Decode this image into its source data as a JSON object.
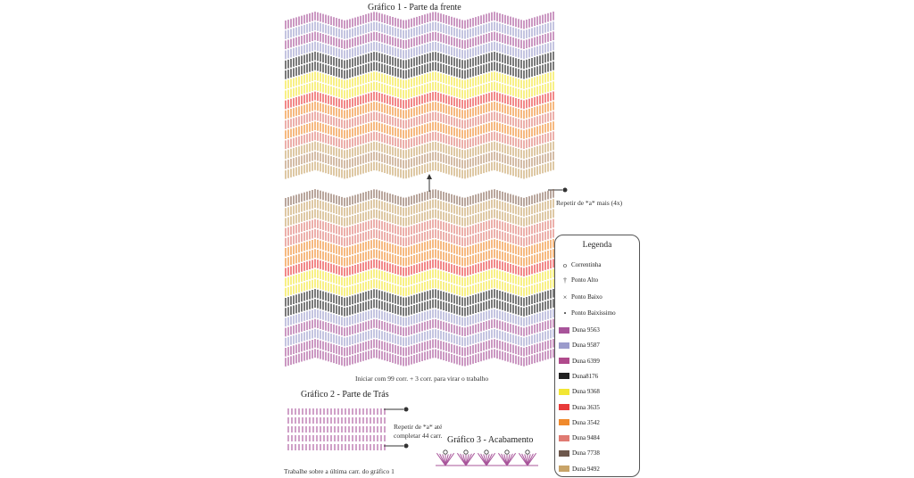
{
  "chart1": {
    "title": "Gráfico 1 - Parte da frente",
    "repeat_note": "Repetir de *a* mais (4x)",
    "start_note": "Iniciar com 99 corr. + 3 corr. para virar o trabalho",
    "upper_rows": [
      "#a8549a",
      "#9c9ccc",
      "#a8549a",
      "#9c9ccc",
      "#222222",
      "#222222",
      "#f2e634",
      "#f2e634",
      "#e83a3a",
      "#f08a2c",
      "#e07a72",
      "#f08a2c",
      "#e07a72",
      "#c8a468",
      "#b8906a",
      "#c8a468"
    ],
    "lower_rows": [
      "#8a6a5a",
      "#c8a468",
      "#c8a468",
      "#e07a72",
      "#e07a72",
      "#f08a2c",
      "#f08a2c",
      "#e83a3a",
      "#f2e634",
      "#f2e634",
      "#222222",
      "#222222",
      "#9c9ccc",
      "#a8549a",
      "#9c9ccc",
      "#a8549a",
      "#a8549a"
    ]
  },
  "chart2": {
    "title": "Gráfico 2 - Parte de Trás",
    "repeat_note_1": "Repetir de *a* até",
    "repeat_note_2": "completar 44 carr.",
    "bottom_note": "Trabalhe sobre a última carr. do gráfico 1",
    "rows": 5,
    "color": "#a8549a"
  },
  "chart3": {
    "title": "Gráfico 3 - Acabamento",
    "motifs": 5,
    "color": "#a8549a"
  },
  "legend": {
    "title": "Legenda",
    "symbols": [
      {
        "glyph": "o",
        "label": "Correntinha",
        "icon": "chain-stitch-icon"
      },
      {
        "glyph": "†",
        "label": "Ponto Alto",
        "icon": "double-crochet-icon"
      },
      {
        "glyph": "×",
        "label": "Ponto Baixo",
        "icon": "single-crochet-icon"
      },
      {
        "glyph": "•",
        "label": "Ponto Baixíssimo",
        "icon": "slip-stitch-icon"
      }
    ],
    "colors": [
      {
        "color": "#a8549a",
        "label": "Duna 9563"
      },
      {
        "color": "#9c9ccc",
        "label": "Duna 9587"
      },
      {
        "color": "#b04a8c",
        "label": "Duna 6399"
      },
      {
        "color": "#222222",
        "label": "Duna8176"
      },
      {
        "color": "#f2e634",
        "label": "Duna 9368"
      },
      {
        "color": "#e83a3a",
        "label": "Duna 3635"
      },
      {
        "color": "#f08a2c",
        "label": "Duna 3542"
      },
      {
        "color": "#e07a72",
        "label": "Duna 9484"
      },
      {
        "color": "#6e584c",
        "label": "Duna 7738"
      },
      {
        "color": "#c8a468",
        "label": "Duna 9492"
      }
    ]
  }
}
